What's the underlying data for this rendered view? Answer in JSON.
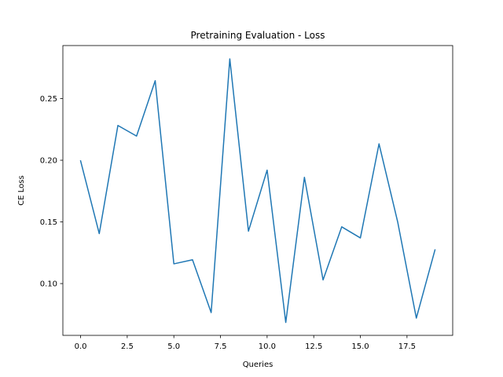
{
  "chart_data": {
    "type": "line",
    "title": "Pretraining Evaluation - Loss",
    "xlabel": "Queries",
    "ylabel": "CE Loss",
    "xlim": [
      -0.95,
      19.95
    ],
    "ylim": [
      0.058,
      0.293
    ],
    "xticks": [
      0.0,
      2.5,
      5.0,
      7.5,
      10.0,
      12.5,
      15.0,
      17.5
    ],
    "xtick_labels": [
      "0.0",
      "2.5",
      "5.0",
      "7.5",
      "10.0",
      "12.5",
      "15.0",
      "17.5"
    ],
    "yticks": [
      0.1,
      0.15,
      0.2,
      0.25
    ],
    "ytick_labels": [
      "0.10",
      "0.15",
      "0.20",
      "0.25"
    ],
    "grid": false,
    "series": [
      {
        "color": "#1f77b4",
        "x": [
          0,
          1,
          2,
          3,
          4,
          5,
          6,
          7,
          8,
          9,
          10,
          11,
          12,
          13,
          14,
          15,
          16,
          17,
          18,
          19
        ],
        "y": [
          0.1995,
          0.1405,
          0.2282,
          0.2196,
          0.2645,
          0.116,
          0.1193,
          0.0765,
          0.2822,
          0.1425,
          0.192,
          0.0685,
          0.1862,
          0.103,
          0.146,
          0.137,
          0.2133,
          0.15,
          0.072,
          0.1273
        ]
      }
    ]
  }
}
